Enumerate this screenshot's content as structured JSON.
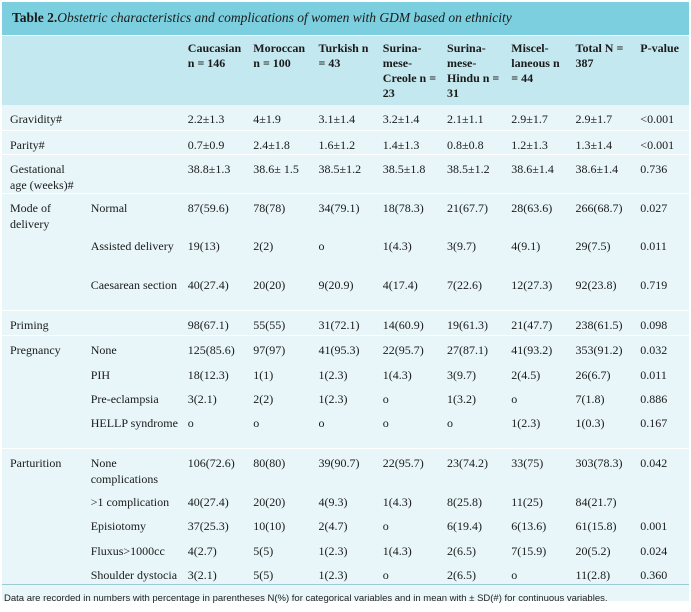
{
  "title": {
    "bold": "Table 2.",
    "italic": "Obstetric characteristics and complications of women with GDM based on ethnicity"
  },
  "columns": [
    "",
    "",
    "Caucasian n = 146",
    "Moroccan n = 100",
    "Turkish n = 43",
    "Surina-mese-Creole n = 23",
    "Surina-mese-Hindu n = 31",
    "Miscel-laneous n = 44",
    "Total N = 387",
    "P-value"
  ],
  "rows": [
    {
      "group": "Gravidity#",
      "sub": "",
      "cells": [
        "2.2±1.3",
        "4±1.9",
        "3.1±1.4",
        "3.2±1.4",
        "2.1±1.1",
        "2.9±1.7",
        "2.9±1.7",
        "<0.001"
      ],
      "sep": true,
      "h": 25
    },
    {
      "group": "Parity#",
      "sub": "",
      "cells": [
        "0.7±0.9",
        "2.4±1.8",
        "1.6±1.2",
        "1.4±1.3",
        "0.8±0.8",
        "1.2±1.3",
        "1.3±1.4",
        "<0.001"
      ],
      "sep": true,
      "h": 24
    },
    {
      "group": "Gestational age (weeks)#",
      "sub": "",
      "cells": [
        "38.8±1.3",
        "38.6± 1.5",
        "38.5±1.2",
        "38.5±1.8",
        "38.5±1.2",
        "38.6±1.4",
        "38.6±1.4",
        "0.736"
      ],
      "sep": true,
      "h": 25
    },
    {
      "group": "Mode of delivery",
      "sub": "Normal",
      "cells": [
        "87(59.6)",
        "78(78)",
        "34(79.1)",
        "18(78.3)",
        "21(67.7)",
        "28(63.6)",
        "266(68.7)",
        "0.027"
      ],
      "sep": false,
      "h": 24
    },
    {
      "group": "",
      "sub": "Assisted delivery",
      "cells": [
        "19(13)",
        "2(2)",
        "o",
        "1(4.3)",
        "3(9.7)",
        "4(9.1)",
        "29(7.5)",
        "0.011"
      ],
      "sep": false,
      "h": 39
    },
    {
      "group": "",
      "sub": "Caesarean section",
      "cells": [
        "40(27.4)",
        "20(20)",
        "9(20.9)",
        "4(17.4)",
        "7(22.6)",
        "12(27.3)",
        "92(23.8)",
        "0.719"
      ],
      "sep": true,
      "h": 40
    },
    {
      "group": "Priming",
      "sub": "",
      "cells": [
        "98(67.1)",
        "55(55)",
        "31(72.1)",
        "14(60.9)",
        "19(61.3)",
        "21(47.7)",
        "238(61.5)",
        "0.098"
      ],
      "sep": true,
      "h": 25
    },
    {
      "group": "Pregnancy",
      "sub": "None",
      "cells": [
        "125(85.6)",
        "97(97)",
        "41(95.3)",
        "22(95.7)",
        "27(87.1)",
        "41(93.2)",
        "353(91.2)",
        "0.032"
      ],
      "sep": false,
      "h": 25
    },
    {
      "group": "",
      "sub": "PIH",
      "cells": [
        "18(12.3)",
        "1(1)",
        "1(2.3)",
        "1(4.3)",
        "3(9.7)",
        "2(4.5)",
        "26(6.7)",
        "0.011"
      ],
      "sep": false,
      "h": 24
    },
    {
      "group": "",
      "sub": "Pre-eclampsia",
      "cells": [
        "3(2.1)",
        "2(2)",
        "1(2.3)",
        "o",
        "1(3.2)",
        "o",
        "7(1.8)",
        "0.886"
      ],
      "sep": false,
      "h": 24
    },
    {
      "group": "",
      "sub": "HELLP syndrome",
      "cells": [
        "o",
        "o",
        "o",
        "o",
        "o",
        "1(2.3)",
        "1(0.3)",
        "0.167"
      ],
      "sep": true,
      "h": 40
    },
    {
      "group": "Parturition",
      "sub": "None complications",
      "cells": [
        "106(72.6)",
        "80(80)",
        "39(90.7)",
        "22(95.7)",
        "23(74.2)",
        "33(75)",
        "303(78.3)",
        "0.042"
      ],
      "sep": false,
      "h": 39
    },
    {
      "group": "",
      "sub": ">1 complication",
      "cells": [
        "40(27.4)",
        "20(20)",
        "4(9.3)",
        "1(4.3)",
        "8(25.8)",
        "11(25)",
        "84(21.7)",
        ""
      ],
      "sep": false,
      "h": 24
    },
    {
      "group": "",
      "sub": "Episiotomy",
      "cells": [
        "37(25.3)",
        "10(10)",
        "2(4.7)",
        "o",
        "6(19.4)",
        "6(13.6)",
        "61(15.8)",
        "0.001"
      ],
      "sep": false,
      "h": 25
    },
    {
      "group": "",
      "sub": "Fluxus>1000cc",
      "cells": [
        "4(2.7)",
        "5(5)",
        "1(2.3)",
        "1(4.3)",
        "2(6.5)",
        "7(15.9)",
        "20(5.2)",
        "0.024"
      ],
      "sep": false,
      "h": 24
    },
    {
      "group": "",
      "sub": "Shoulder dystocia",
      "cells": [
        "3(2.1)",
        "5(5)",
        "1(2.3)",
        "o",
        "2(6.5)",
        "o",
        "11(2.8)",
        "0.360"
      ],
      "sep": false,
      "h": 40
    }
  ],
  "footnote": "Data are recorded in numbers with percentage in parentheses N(%) for categorical variables and in mean with ± SD(#) for continuous variables."
}
